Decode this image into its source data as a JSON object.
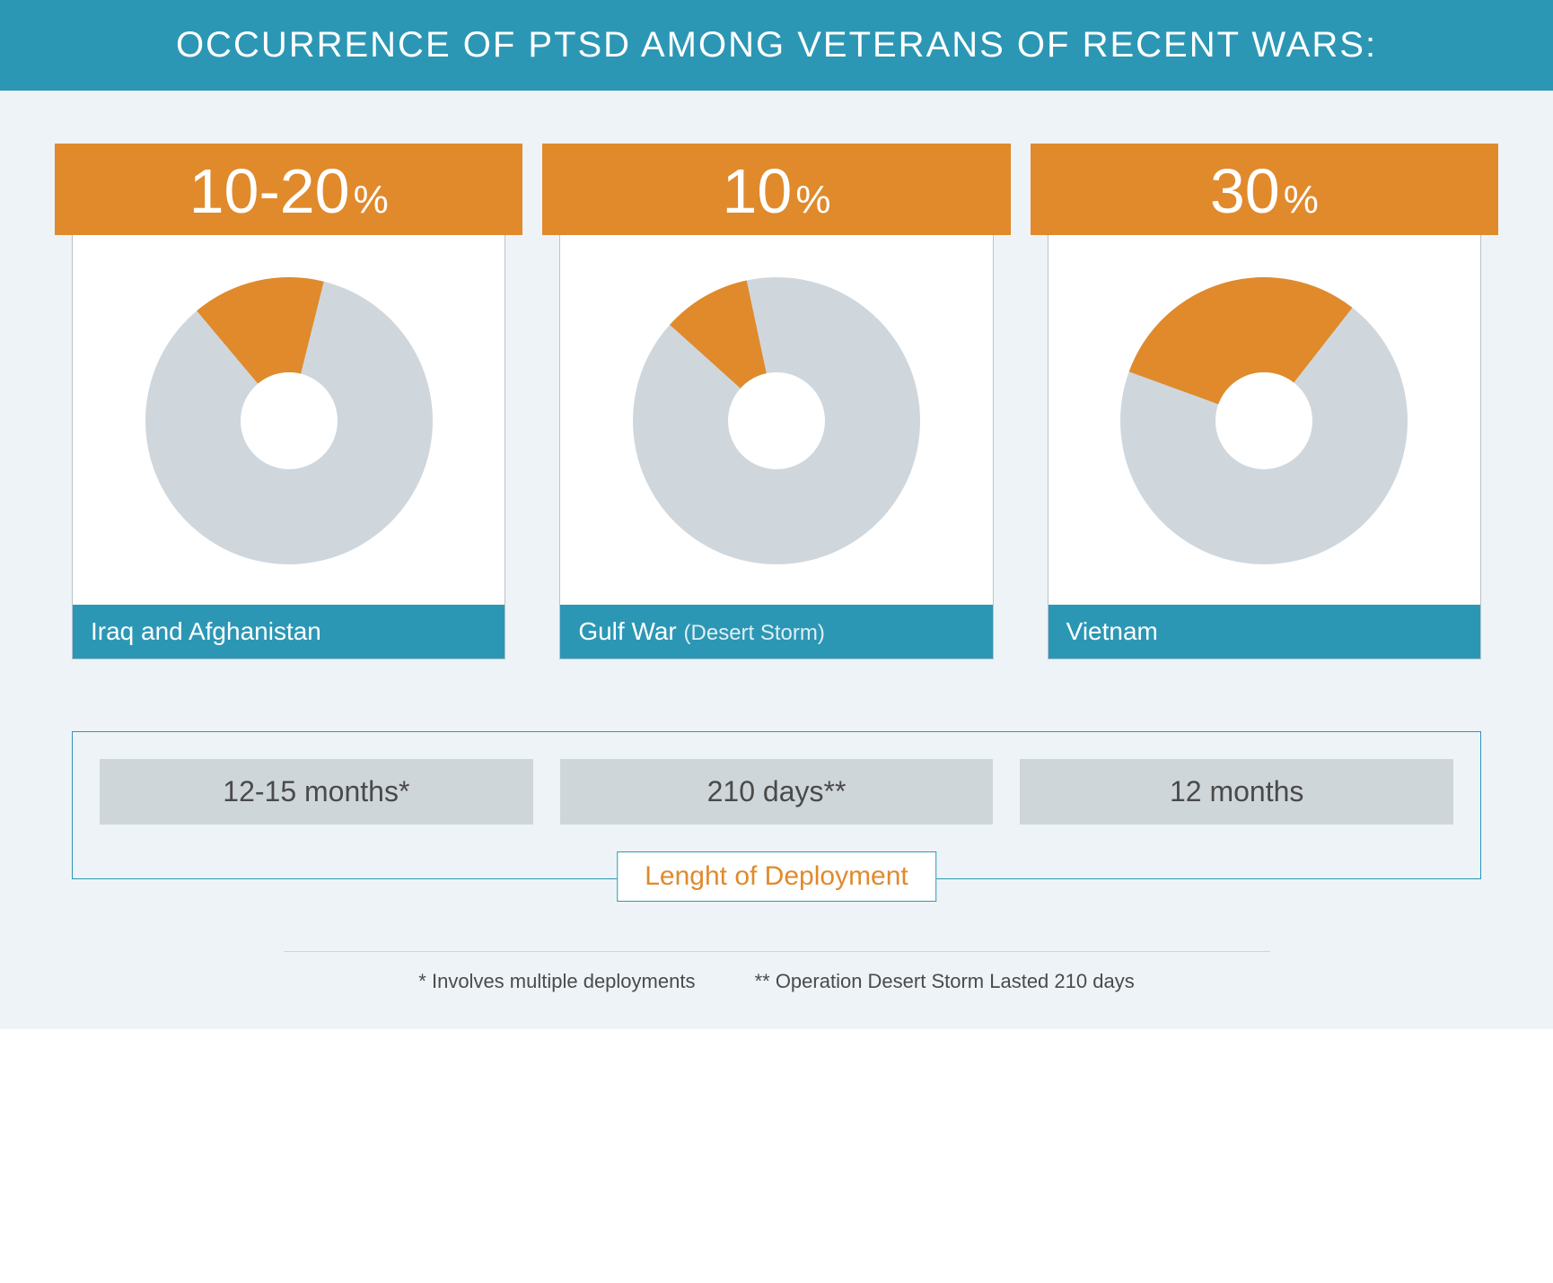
{
  "colors": {
    "teal": "#2c97b5",
    "orange": "#e08a2c",
    "page_bg": "#eef3f7",
    "donut_grey": "#cfd7dd",
    "grey_cell": "#cfd6da",
    "border_grey": "#b8c3cb",
    "teal_border": "#2c97b5",
    "text_dark": "#4a4a4a",
    "white": "#ffffff"
  },
  "header": {
    "title": "OCCURRENCE OF PTSD AMONG VETERANS OF RECENT WARS:"
  },
  "cards": [
    {
      "percent_label": "10-20",
      "percent_suffix": "%",
      "donut_percent": 15,
      "donut_start_deg": -40,
      "war_main": "Iraq and Afghanistan",
      "war_sub": "",
      "deployment_value": "12-15",
      "deployment_unit": "months*"
    },
    {
      "percent_label": "10",
      "percent_suffix": "%",
      "donut_percent": 10,
      "donut_start_deg": -48,
      "war_main": "Gulf War",
      "war_sub": "(Desert Storm)",
      "deployment_value": "210",
      "deployment_unit": "days**"
    },
    {
      "percent_label": "30",
      "percent_suffix": "%",
      "donut_percent": 30,
      "donut_start_deg": -70,
      "war_main": "Vietnam",
      "war_sub": "",
      "deployment_value": "12",
      "deployment_unit": "months"
    }
  ],
  "deployment_title": "Lenght of Deployment",
  "footnotes": {
    "a": "* Involves multiple deployments",
    "b": "** Operation Desert Storm Lasted 210 days"
  },
  "donut": {
    "outer_r": 160,
    "inner_r": 54,
    "stroke_w": 0
  }
}
